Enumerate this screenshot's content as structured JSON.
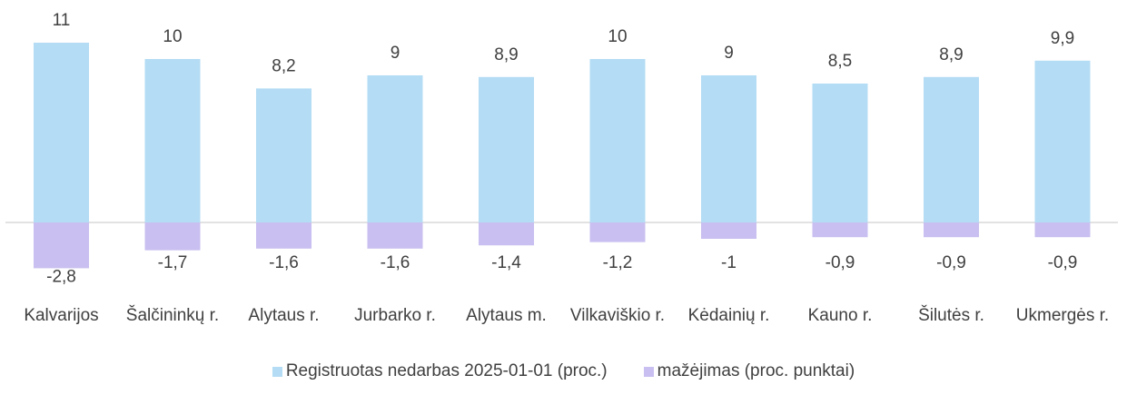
{
  "chart_data": {
    "type": "bar",
    "categories": [
      "Kalvarijos",
      "Šalčininkų r.",
      "Alytaus r.",
      "Jurbarko r.",
      "Alytaus m.",
      "Vilkaviškio r.",
      "Kėdainių r.",
      "Kauno r.",
      "Šilutės r.",
      "Ukmergės r."
    ],
    "series": [
      {
        "name": "Registruotas nedarbas 2025-01-01 (proc.)",
        "color": "#b4dcf4",
        "values": [
          11,
          10,
          8.2,
          9,
          8.9,
          10,
          9,
          8.5,
          8.9,
          9.9
        ],
        "value_labels": [
          "11",
          "10",
          "8,2",
          "9",
          "8,9",
          "10",
          "9",
          "8,5",
          "8,9",
          "9,9"
        ]
      },
      {
        "name": "mažėjimas (proc. punktai)",
        "color": "#c9bff0",
        "values": [
          -2.8,
          -1.7,
          -1.6,
          -1.6,
          -1.4,
          -1.2,
          -1,
          -0.9,
          -0.9,
          -0.9
        ],
        "value_labels": [
          "-2,8",
          "-1,7",
          "-1,6",
          "-1,6",
          "-1,4",
          "-1,2",
          "-1",
          "-0,9",
          "-0,9",
          "-0,9"
        ]
      }
    ],
    "legend": "bottom"
  }
}
